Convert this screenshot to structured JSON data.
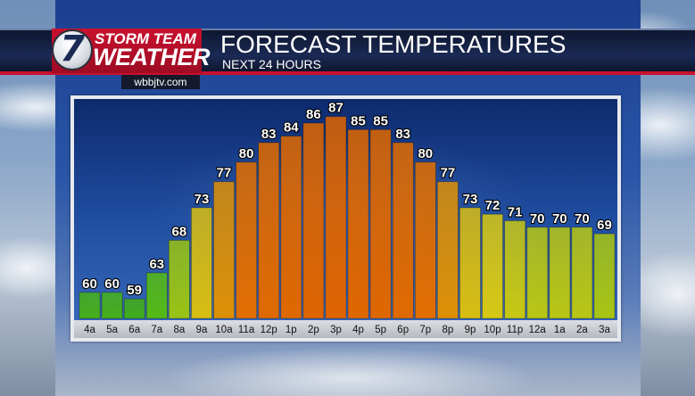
{
  "header": {
    "logo_number": "7",
    "logo_top": "STORM TEAM",
    "logo_bottom": "WEATHER",
    "title": "FORECAST TEMPERATURES",
    "subtitle": "NEXT 24 HOURS",
    "site": "wbbjtv.com"
  },
  "colors": {
    "banner_red": "#c8102e",
    "banner_navy": "#1b2a55",
    "panel_frame": "#e6e9ee",
    "tick_strip": "#c9ccd1"
  },
  "chart_data": {
    "type": "bar",
    "title": "FORECAST TEMPERATURES",
    "subtitle": "NEXT 24 HOURS",
    "categories": [
      "4a",
      "5a",
      "6a",
      "7a",
      "8a",
      "9a",
      "10a",
      "11a",
      "12p",
      "1p",
      "2p",
      "3p",
      "4p",
      "5p",
      "6p",
      "7p",
      "8p",
      "9p",
      "10p",
      "11p",
      "12a",
      "1a",
      "2a",
      "3a"
    ],
    "values": [
      60,
      60,
      59,
      63,
      68,
      73,
      77,
      80,
      83,
      84,
      86,
      87,
      85,
      85,
      83,
      80,
      77,
      73,
      72,
      71,
      70,
      70,
      70,
      69
    ],
    "ylim": [
      50,
      90
    ],
    "grid": false,
    "legend": "none",
    "data_labels": true
  }
}
